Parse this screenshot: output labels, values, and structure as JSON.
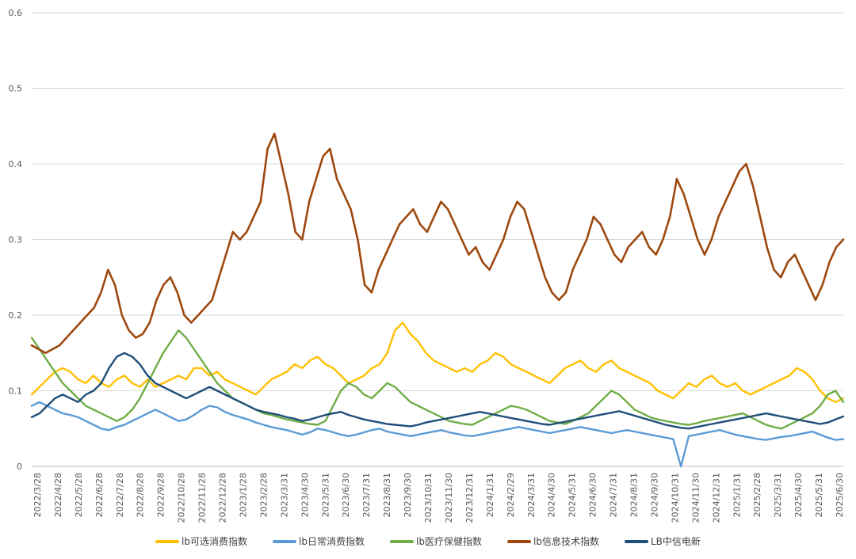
{
  "chart_data": {
    "type": "line",
    "title": "",
    "xlabel": "",
    "ylabel": "",
    "ylim": [
      0,
      0.6
    ],
    "yticks": [
      0,
      0.1,
      0.2,
      0.3,
      0.4,
      0.5,
      0.6
    ],
    "ytick_labels": [
      "0",
      "0.1",
      "0.2",
      "0.3",
      "0.4",
      "0.5",
      "0.6"
    ],
    "x_tick_labels": [
      "2022/3/28",
      "2022/4/28",
      "2022/5/28",
      "2022/6/28",
      "2022/7/28",
      "2022/8/28",
      "2022/9/28",
      "2022/10/28",
      "2022/11/28",
      "2022/12/28",
      "2023/1/28",
      "2023/2/28",
      "2023/3/31",
      "2023/4/30",
      "2023/5/31",
      "2023/6/30",
      "2023/7/31",
      "2023/8/31",
      "2023/9/30",
      "2023/10/31",
      "2023/11/30",
      "2023/12/31",
      "2024/1/31",
      "2024/2/29",
      "2024/3/31",
      "2024/4/30",
      "2024/5/31",
      "2024/6/30",
      "2024/7/31",
      "2024/8/31",
      "2024/9/30",
      "2024/10/31",
      "2024/11/30",
      "2024/12/31",
      "2025/1/31",
      "2025/2/28",
      "2025/3/31",
      "2025/4/30",
      "2025/5/31",
      "2025/6/30"
    ],
    "grid": true,
    "legend_position": "bottom",
    "series": [
      {
        "name": "lb可选消费指数",
        "color": "#FFC000",
        "values": [
          0.095,
          0.105,
          0.115,
          0.125,
          0.13,
          0.125,
          0.115,
          0.11,
          0.12,
          0.11,
          0.105,
          0.115,
          0.12,
          0.11,
          0.105,
          0.115,
          0.105,
          0.11,
          0.115,
          0.12,
          0.115,
          0.13,
          0.13,
          0.12,
          0.125,
          0.115,
          0.11,
          0.105,
          0.1,
          0.095,
          0.105,
          0.115,
          0.12,
          0.125,
          0.135,
          0.13,
          0.14,
          0.145,
          0.135,
          0.13,
          0.12,
          0.11,
          0.115,
          0.12,
          0.13,
          0.135,
          0.15,
          0.18,
          0.19,
          0.175,
          0.165,
          0.15,
          0.14,
          0.135,
          0.13,
          0.125,
          0.13,
          0.125,
          0.135,
          0.14,
          0.15,
          0.145,
          0.135,
          0.13,
          0.125,
          0.12,
          0.115,
          0.11,
          0.12,
          0.13,
          0.135,
          0.14,
          0.13,
          0.125,
          0.135,
          0.14,
          0.13,
          0.125,
          0.12,
          0.115,
          0.11,
          0.1,
          0.095,
          0.09,
          0.1,
          0.11,
          0.105,
          0.115,
          0.12,
          0.11,
          0.105,
          0.11,
          0.1,
          0.095,
          0.1,
          0.105,
          0.11,
          0.115,
          0.12,
          0.13,
          0.125,
          0.115,
          0.1,
          0.09,
          0.085,
          0.09
        ]
      },
      {
        "name": "lb日常消费指数",
        "color": "#5B9BD5",
        "values": [
          0.08,
          0.085,
          0.08,
          0.075,
          0.07,
          0.068,
          0.065,
          0.06,
          0.055,
          0.05,
          0.048,
          0.052,
          0.055,
          0.06,
          0.065,
          0.07,
          0.075,
          0.07,
          0.065,
          0.06,
          0.062,
          0.068,
          0.075,
          0.08,
          0.078,
          0.072,
          0.068,
          0.065,
          0.062,
          0.058,
          0.055,
          0.052,
          0.05,
          0.048,
          0.045,
          0.042,
          0.045,
          0.05,
          0.048,
          0.045,
          0.042,
          0.04,
          0.042,
          0.045,
          0.048,
          0.05,
          0.046,
          0.044,
          0.042,
          0.04,
          0.042,
          0.044,
          0.046,
          0.048,
          0.045,
          0.043,
          0.041,
          0.04,
          0.042,
          0.044,
          0.046,
          0.048,
          0.05,
          0.052,
          0.05,
          0.048,
          0.046,
          0.044,
          0.046,
          0.048,
          0.05,
          0.052,
          0.05,
          0.048,
          0.046,
          0.044,
          0.046,
          0.048,
          0.046,
          0.044,
          0.042,
          0.04,
          0.038,
          0.036,
          0.0,
          0.04,
          0.042,
          0.044,
          0.046,
          0.048,
          0.045,
          0.042,
          0.04,
          0.038,
          0.036,
          0.035,
          0.037,
          0.039,
          0.04,
          0.042,
          0.044,
          0.046,
          0.042,
          0.038,
          0.035,
          0.036
        ]
      },
      {
        "name": "lb医疗保健指数",
        "color": "#70AD47",
        "values": [
          0.17,
          0.155,
          0.14,
          0.125,
          0.11,
          0.1,
          0.09,
          0.08,
          0.075,
          0.07,
          0.065,
          0.06,
          0.065,
          0.075,
          0.09,
          0.11,
          0.13,
          0.15,
          0.165,
          0.18,
          0.17,
          0.155,
          0.14,
          0.125,
          0.11,
          0.1,
          0.09,
          0.085,
          0.08,
          0.075,
          0.07,
          0.068,
          0.065,
          0.062,
          0.06,
          0.058,
          0.056,
          0.055,
          0.06,
          0.08,
          0.1,
          0.11,
          0.105,
          0.095,
          0.09,
          0.1,
          0.11,
          0.105,
          0.095,
          0.085,
          0.08,
          0.075,
          0.07,
          0.065,
          0.06,
          0.058,
          0.056,
          0.055,
          0.06,
          0.065,
          0.07,
          0.075,
          0.08,
          0.078,
          0.075,
          0.07,
          0.065,
          0.06,
          0.058,
          0.056,
          0.06,
          0.065,
          0.07,
          0.08,
          0.09,
          0.1,
          0.095,
          0.085,
          0.075,
          0.07,
          0.065,
          0.062,
          0.06,
          0.058,
          0.056,
          0.055,
          0.057,
          0.06,
          0.062,
          0.064,
          0.066,
          0.068,
          0.07,
          0.065,
          0.06,
          0.055,
          0.052,
          0.05,
          0.055,
          0.06,
          0.065,
          0.07,
          0.08,
          0.095,
          0.1,
          0.085
        ]
      },
      {
        "name": "lb信息技术指数",
        "color": "#9E480E",
        "values": [
          0.16,
          0.155,
          0.15,
          0.155,
          0.16,
          0.17,
          0.18,
          0.19,
          0.2,
          0.21,
          0.23,
          0.26,
          0.24,
          0.2,
          0.18,
          0.17,
          0.175,
          0.19,
          0.22,
          0.24,
          0.25,
          0.23,
          0.2,
          0.19,
          0.2,
          0.21,
          0.22,
          0.25,
          0.28,
          0.31,
          0.3,
          0.31,
          0.33,
          0.35,
          0.42,
          0.44,
          0.4,
          0.36,
          0.31,
          0.3,
          0.35,
          0.38,
          0.41,
          0.42,
          0.38,
          0.36,
          0.34,
          0.3,
          0.24,
          0.23,
          0.26,
          0.28,
          0.3,
          0.32,
          0.33,
          0.34,
          0.32,
          0.31,
          0.33,
          0.35,
          0.34,
          0.32,
          0.3,
          0.28,
          0.29,
          0.27,
          0.26,
          0.28,
          0.3,
          0.33,
          0.35,
          0.34,
          0.31,
          0.28,
          0.25,
          0.23,
          0.22,
          0.23,
          0.26,
          0.28,
          0.3,
          0.33,
          0.32,
          0.3,
          0.28,
          0.27,
          0.29,
          0.3,
          0.31,
          0.29,
          0.28,
          0.3,
          0.33,
          0.38,
          0.36,
          0.33,
          0.3,
          0.28,
          0.3,
          0.33,
          0.35,
          0.37,
          0.39,
          0.4,
          0.37,
          0.33,
          0.29,
          0.26,
          0.25,
          0.27,
          0.28,
          0.26,
          0.24,
          0.22,
          0.24,
          0.27,
          0.29,
          0.3
        ]
      },
      {
        "name": "LB中信电新",
        "color": "#1F4E79",
        "values": [
          0.065,
          0.07,
          0.08,
          0.09,
          0.095,
          0.09,
          0.085,
          0.095,
          0.1,
          0.11,
          0.13,
          0.145,
          0.15,
          0.145,
          0.135,
          0.12,
          0.11,
          0.105,
          0.1,
          0.095,
          0.09,
          0.095,
          0.1,
          0.105,
          0.1,
          0.095,
          0.09,
          0.085,
          0.08,
          0.075,
          0.072,
          0.07,
          0.068,
          0.065,
          0.063,
          0.06,
          0.062,
          0.065,
          0.068,
          0.07,
          0.072,
          0.068,
          0.065,
          0.062,
          0.06,
          0.058,
          0.056,
          0.055,
          0.054,
          0.053,
          0.055,
          0.058,
          0.06,
          0.062,
          0.064,
          0.066,
          0.068,
          0.07,
          0.072,
          0.07,
          0.068,
          0.066,
          0.064,
          0.062,
          0.06,
          0.058,
          0.056,
          0.055,
          0.057,
          0.059,
          0.061,
          0.063,
          0.065,
          0.067,
          0.069,
          0.071,
          0.073,
          0.07,
          0.067,
          0.064,
          0.061,
          0.058,
          0.055,
          0.053,
          0.051,
          0.05,
          0.052,
          0.054,
          0.056,
          0.058,
          0.06,
          0.062,
          0.064,
          0.066,
          0.068,
          0.07,
          0.068,
          0.066,
          0.064,
          0.062,
          0.06,
          0.058,
          0.056,
          0.058,
          0.062,
          0.066
        ]
      }
    ]
  }
}
